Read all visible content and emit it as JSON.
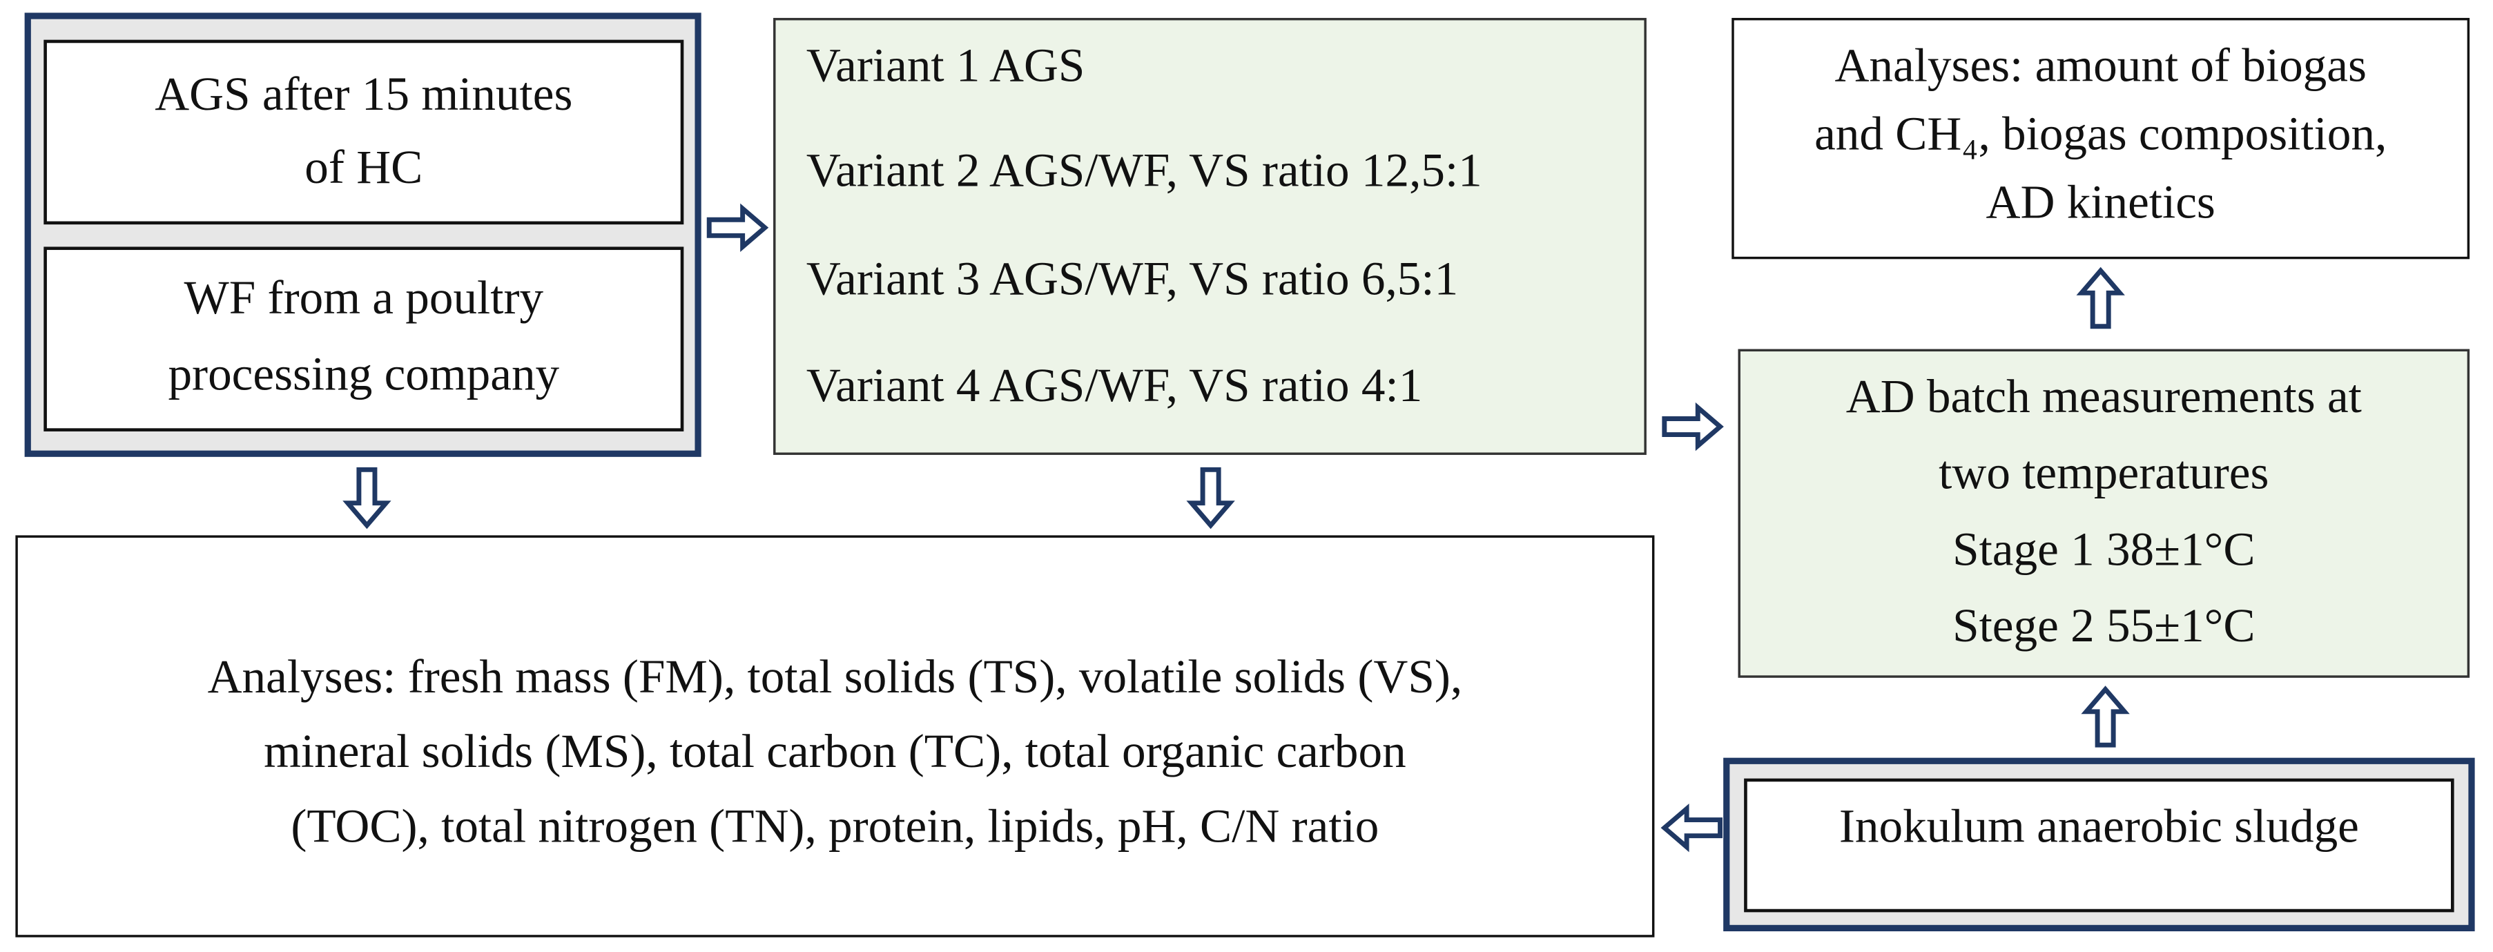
{
  "boxes": [
    {
      "lines": [
        "AGS after 15 minutes",
        "of HC"
      ]
    },
    {
      "lines": [
        "WF from a poultry",
        "processing company"
      ]
    },
    {
      "lines": [
        "Variant 1 AGS",
        "Variant 2 AGS/WF, VS ratio 12,5:1",
        "Variant 3 AGS/WF, VS ratio 6,5:1",
        "Variant 4 AGS/WF, VS ratio 4:1"
      ]
    },
    {
      "lines": [
        "Analyses: amount of biogas",
        "and CH₄, biogas composition,",
        "AD kinetics"
      ]
    },
    {
      "lines": [
        "AD batch measurements at",
        "two temperatures",
        "Stage 1 38±1°C",
        "Stege 2  55±1°C"
      ]
    },
    {
      "lines": [
        "Analyses: fresh mass (FM), total solids (TS), volatile solids (VS),",
        "mineral solids (MS), total carbon (TC), total organic carbon",
        "(TOC), total nitrogen (TN), protein, lipids, pH, C/N ratio"
      ]
    },
    {
      "lines": [
        "Inokulum anaerobic sludge"
      ]
    }
  ]
}
